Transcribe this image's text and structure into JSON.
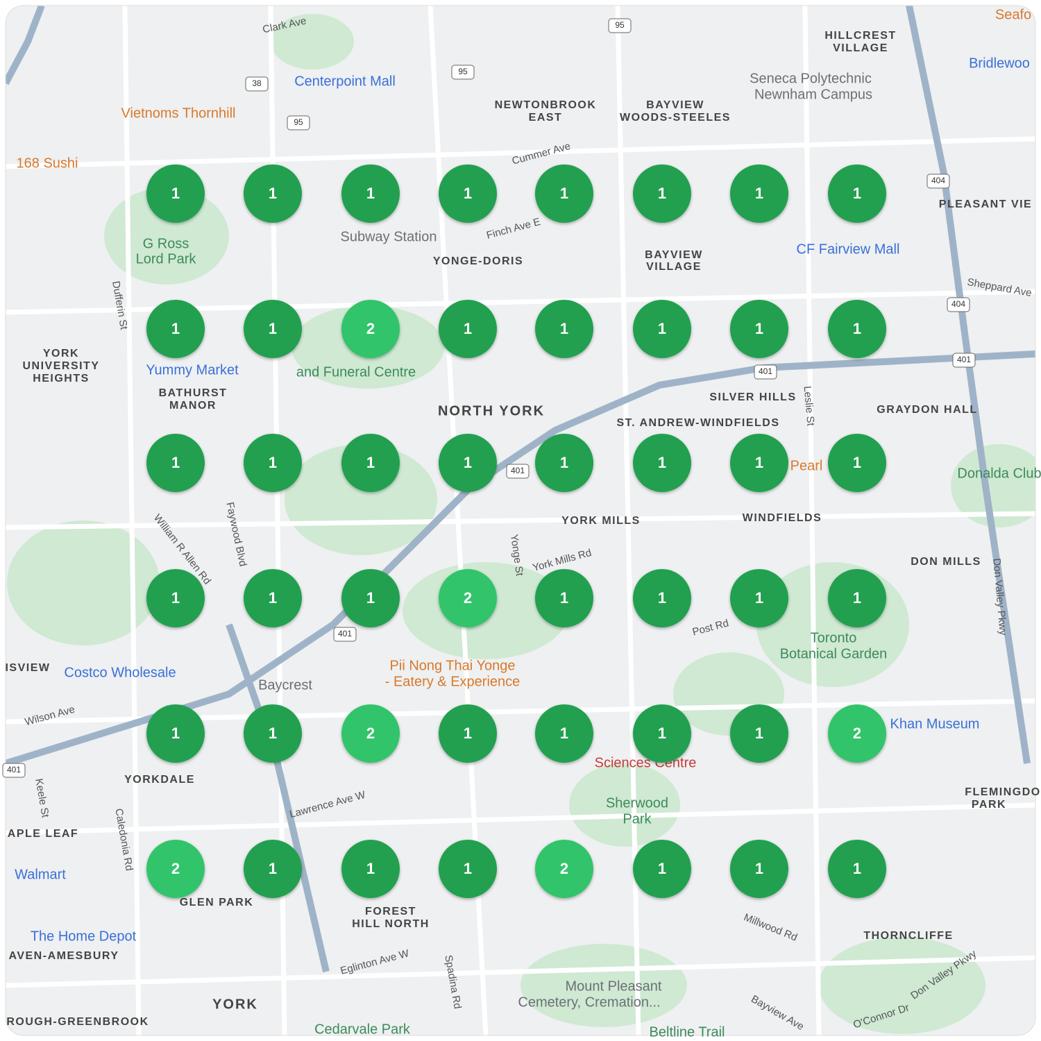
{
  "map": {
    "labels": [
      "Clark Ave",
      "Centerpoint Mall",
      "Vietnoms Thornhill",
      "168 Sushi",
      "NEWTONBROOK",
      "EAST",
      "BAYVIEW",
      "WOODS-STEELES",
      "HILLCREST",
      "VILLAGE",
      "Seneca Polytechnic",
      "Newnham Campus",
      "Bridlewoo",
      "Cummer Ave",
      "Subway Station",
      "Finch Ave E",
      "YONGE-DORIS",
      "BAYVIEW",
      "VILLAGE",
      "CF Fairview Mall",
      "Sheppard Ave",
      "PLEASANT VIE",
      "G Ross",
      "Lord Park",
      "Dufferin St",
      "YORK",
      "UNIVERSITY",
      "HEIGHTS",
      "Yummy Market",
      "and Funeral Centre",
      "BATHURST",
      "MANOR",
      "NORTH YORK",
      "SILVER HILLS",
      "ST. ANDREW-WINDFIELDS",
      "GRAYDON HALL",
      "Leslie St",
      "Donalda Club",
      "Pearl",
      "YORK MILLS",
      "WINDFIELDS",
      "William R Allen Rd",
      "Faywood Blvd",
      "Yonge St",
      "York Mills Rd",
      "DON MILLS",
      "Don Valley Pkwy",
      "Post Rd",
      "Toronto",
      "Botanical Garden",
      "Costco Wholesale",
      "Baycrest",
      "Pii Nong Thai Yonge",
      "- Eatery & Experience",
      "Wilson Ave",
      "Khan Museum",
      "Sciences Centre",
      "YORKDALE",
      "Lawrence Ave W",
      "Sherwood",
      "Park",
      "FLEMINGDO",
      "PARK",
      "Keele St",
      "Caledonia Rd",
      "APLE LEAF",
      "Walmart",
      "GLEN PARK",
      "FOREST",
      "HILL NORTH",
      "Millwood Rd",
      "THORNCLIFFE",
      "The Home Depot",
      "AVEN-AMESBURY",
      "Eglinton Ave W",
      "Spadina Rd",
      "Mount Pleasant",
      "Cemetery, Cremation...",
      "YORK",
      "ROUGH-GREENBROOK",
      "Bayview Ave",
      "O'Connor Dr",
      "Don Valley Pkwy",
      "Cedarvale Park",
      "Beltline Trail",
      "ISVIEW",
      "Seafo"
    ],
    "shields": [
      "401",
      "401",
      "401",
      "401",
      "401",
      "404",
      "404",
      "95",
      "95",
      "95",
      "38"
    ]
  },
  "clusters": {
    "counts": [
      [
        1,
        1,
        1,
        1,
        1,
        1,
        1,
        1
      ],
      [
        1,
        1,
        2,
        1,
        1,
        1,
        1,
        1
      ],
      [
        1,
        1,
        1,
        1,
        1,
        1,
        1,
        1
      ],
      [
        1,
        1,
        1,
        2,
        1,
        1,
        1,
        1
      ],
      [
        1,
        1,
        2,
        1,
        1,
        1,
        1,
        2
      ],
      [
        2,
        1,
        1,
        1,
        2,
        1,
        1,
        1
      ]
    ],
    "colors": {
      "1": "#20a050",
      "2": "#33c46b"
    }
  }
}
